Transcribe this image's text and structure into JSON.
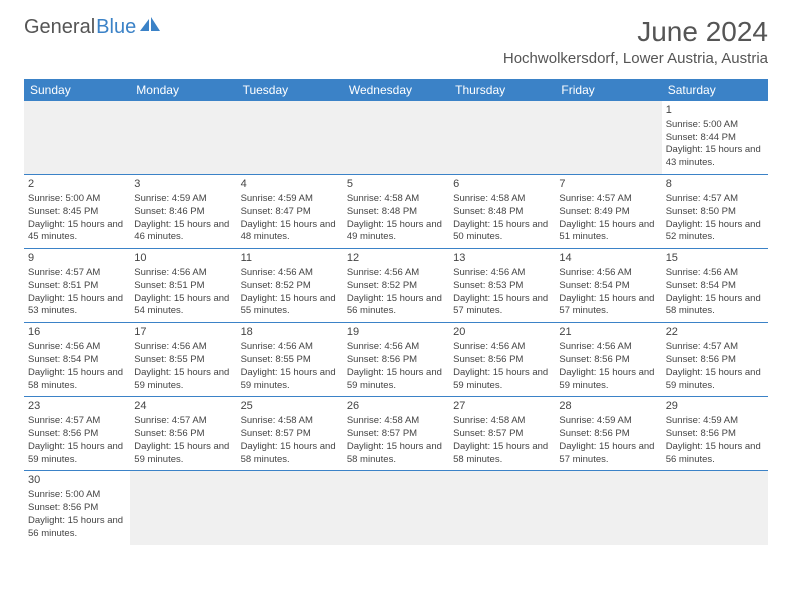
{
  "logo": {
    "part1": "General",
    "part2": "Blue"
  },
  "title": "June 2024",
  "location": "Hochwolkersdorf, Lower Austria, Austria",
  "colors": {
    "header_bg": "#3b82c7",
    "header_text": "#ffffff",
    "border": "#3b82c7",
    "text": "#444444",
    "muted": "#555555"
  },
  "daysOfWeek": [
    "Sunday",
    "Monday",
    "Tuesday",
    "Wednesday",
    "Thursday",
    "Friday",
    "Saturday"
  ],
  "firstDayIndex": 6,
  "daysInMonth": 30,
  "days": {
    "1": {
      "sunrise": "5:00 AM",
      "sunset": "8:44 PM",
      "daylight": "15 hours and 43 minutes."
    },
    "2": {
      "sunrise": "5:00 AM",
      "sunset": "8:45 PM",
      "daylight": "15 hours and 45 minutes."
    },
    "3": {
      "sunrise": "4:59 AM",
      "sunset": "8:46 PM",
      "daylight": "15 hours and 46 minutes."
    },
    "4": {
      "sunrise": "4:59 AM",
      "sunset": "8:47 PM",
      "daylight": "15 hours and 48 minutes."
    },
    "5": {
      "sunrise": "4:58 AM",
      "sunset": "8:48 PM",
      "daylight": "15 hours and 49 minutes."
    },
    "6": {
      "sunrise": "4:58 AM",
      "sunset": "8:48 PM",
      "daylight": "15 hours and 50 minutes."
    },
    "7": {
      "sunrise": "4:57 AM",
      "sunset": "8:49 PM",
      "daylight": "15 hours and 51 minutes."
    },
    "8": {
      "sunrise": "4:57 AM",
      "sunset": "8:50 PM",
      "daylight": "15 hours and 52 minutes."
    },
    "9": {
      "sunrise": "4:57 AM",
      "sunset": "8:51 PM",
      "daylight": "15 hours and 53 minutes."
    },
    "10": {
      "sunrise": "4:56 AM",
      "sunset": "8:51 PM",
      "daylight": "15 hours and 54 minutes."
    },
    "11": {
      "sunrise": "4:56 AM",
      "sunset": "8:52 PM",
      "daylight": "15 hours and 55 minutes."
    },
    "12": {
      "sunrise": "4:56 AM",
      "sunset": "8:52 PM",
      "daylight": "15 hours and 56 minutes."
    },
    "13": {
      "sunrise": "4:56 AM",
      "sunset": "8:53 PM",
      "daylight": "15 hours and 57 minutes."
    },
    "14": {
      "sunrise": "4:56 AM",
      "sunset": "8:54 PM",
      "daylight": "15 hours and 57 minutes."
    },
    "15": {
      "sunrise": "4:56 AM",
      "sunset": "8:54 PM",
      "daylight": "15 hours and 58 minutes."
    },
    "16": {
      "sunrise": "4:56 AM",
      "sunset": "8:54 PM",
      "daylight": "15 hours and 58 minutes."
    },
    "17": {
      "sunrise": "4:56 AM",
      "sunset": "8:55 PM",
      "daylight": "15 hours and 59 minutes."
    },
    "18": {
      "sunrise": "4:56 AM",
      "sunset": "8:55 PM",
      "daylight": "15 hours and 59 minutes."
    },
    "19": {
      "sunrise": "4:56 AM",
      "sunset": "8:56 PM",
      "daylight": "15 hours and 59 minutes."
    },
    "20": {
      "sunrise": "4:56 AM",
      "sunset": "8:56 PM",
      "daylight": "15 hours and 59 minutes."
    },
    "21": {
      "sunrise": "4:56 AM",
      "sunset": "8:56 PM",
      "daylight": "15 hours and 59 minutes."
    },
    "22": {
      "sunrise": "4:57 AM",
      "sunset": "8:56 PM",
      "daylight": "15 hours and 59 minutes."
    },
    "23": {
      "sunrise": "4:57 AM",
      "sunset": "8:56 PM",
      "daylight": "15 hours and 59 minutes."
    },
    "24": {
      "sunrise": "4:57 AM",
      "sunset": "8:56 PM",
      "daylight": "15 hours and 59 minutes."
    },
    "25": {
      "sunrise": "4:58 AM",
      "sunset": "8:57 PM",
      "daylight": "15 hours and 58 minutes."
    },
    "26": {
      "sunrise": "4:58 AM",
      "sunset": "8:57 PM",
      "daylight": "15 hours and 58 minutes."
    },
    "27": {
      "sunrise": "4:58 AM",
      "sunset": "8:57 PM",
      "daylight": "15 hours and 58 minutes."
    },
    "28": {
      "sunrise": "4:59 AM",
      "sunset": "8:56 PM",
      "daylight": "15 hours and 57 minutes."
    },
    "29": {
      "sunrise": "4:59 AM",
      "sunset": "8:56 PM",
      "daylight": "15 hours and 56 minutes."
    },
    "30": {
      "sunrise": "5:00 AM",
      "sunset": "8:56 PM",
      "daylight": "15 hours and 56 minutes."
    }
  },
  "labels": {
    "sunrise": "Sunrise:",
    "sunset": "Sunset:",
    "daylight": "Daylight:"
  }
}
